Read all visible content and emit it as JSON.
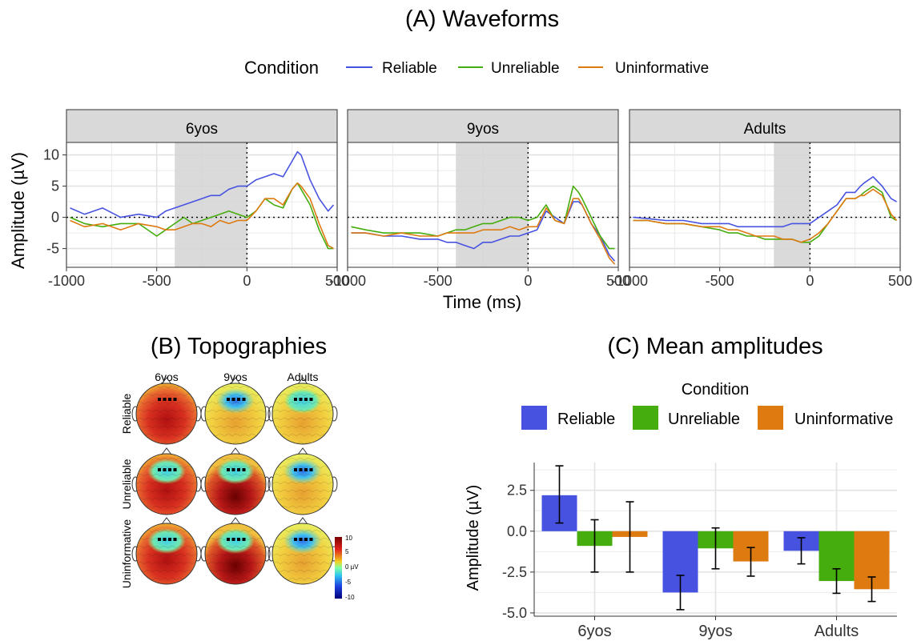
{
  "panel_a": {
    "title": "(A) Waveforms",
    "legend_title": "Condition",
    "ylabel": "Amplitude (µV)",
    "xlabel": "Time (ms)"
  },
  "panel_b": {
    "title": "(B) Topographies",
    "col_labels": [
      "6yos",
      "9yos",
      "Adults"
    ],
    "row_labels": [
      "Reliable",
      "Unreliable",
      "Uninformative"
    ],
    "colorbar_ticks": [
      "10",
      "5",
      "0 µV",
      "-5",
      "-10"
    ]
  },
  "panel_c": {
    "title": "(C) Mean amplitudes",
    "legend_title": "Condition",
    "ylabel": "Amplitude (µV)"
  },
  "colors": {
    "Reliable": "#4753e0",
    "Unreliable": "#46ad0e",
    "Uninformative": "#dd7a10",
    "strip": "#d9d9d9",
    "grid": "#ebebeb",
    "panel_border": "#333333",
    "shade": "#d4d4d4"
  },
  "chart_data": [
    {
      "type": "line",
      "title": "(A) Waveforms",
      "xlabel": "Time (ms)",
      "ylabel": "Amplitude (µV)",
      "xlim": [
        -1000,
        500
      ],
      "ylim": [
        -8,
        12
      ],
      "xticks": [
        "-1000",
        "-500",
        "0",
        "500"
      ],
      "yticks": [
        "-5",
        "0",
        "5",
        "10"
      ],
      "legend": "top",
      "grid": true,
      "facets": [
        {
          "label": "6yos",
          "shade": [
            -400,
            0
          ],
          "series": [
            {
              "name": "Reliable",
              "x": [
                -980,
                -900,
                -800,
                -700,
                -600,
                -500,
                -450,
                -400,
                -350,
                -300,
                -250,
                -200,
                -150,
                -100,
                -50,
                0,
                50,
                100,
                150,
                200,
                250,
                280,
                300,
                350,
                400,
                450,
                480
              ],
              "y": [
                1.5,
                0.5,
                1.5,
                0,
                0.5,
                0,
                1,
                1.5,
                2,
                2.5,
                3,
                3.5,
                3.5,
                4.5,
                5,
                5,
                6,
                6.5,
                7,
                6.5,
                9,
                10.5,
                10,
                6,
                3,
                1,
                2
              ]
            },
            {
              "name": "Unreliable",
              "x": [
                -980,
                -900,
                -800,
                -700,
                -600,
                -500,
                -450,
                -400,
                -350,
                -300,
                -250,
                -200,
                -150,
                -100,
                -50,
                0,
                50,
                100,
                150,
                200,
                250,
                280,
                300,
                350,
                400,
                450,
                480
              ],
              "y": [
                0,
                -1,
                -1.5,
                -1,
                -1,
                -3,
                -2,
                -1,
                0,
                -1,
                -0.5,
                0,
                0.5,
                1,
                0.5,
                0,
                1,
                3,
                2,
                1.5,
                4.5,
                5.5,
                4.5,
                2,
                -2,
                -5,
                -5
              ]
            },
            {
              "name": "Uninformative",
              "x": [
                -980,
                -900,
                -800,
                -700,
                -600,
                -500,
                -450,
                -400,
                -350,
                -300,
                -250,
                -200,
                -150,
                -100,
                -50,
                0,
                50,
                100,
                150,
                200,
                250,
                280,
                300,
                350,
                400,
                450,
                480
              ],
              "y": [
                -0.5,
                -1.5,
                -1,
                -2,
                -1,
                -1.5,
                -2,
                -2,
                -1.5,
                -1,
                -1,
                -1.5,
                -0.5,
                -1,
                -0.5,
                -0.5,
                1,
                3,
                3,
                2,
                4.5,
                5.5,
                5,
                3,
                -1,
                -4.5,
                -5
              ]
            }
          ]
        },
        {
          "label": "9yos",
          "shade": [
            -400,
            0
          ],
          "series": [
            {
              "name": "Reliable",
              "x": [
                -980,
                -900,
                -800,
                -700,
                -600,
                -500,
                -450,
                -400,
                -350,
                -300,
                -250,
                -200,
                -150,
                -100,
                -50,
                0,
                50,
                100,
                150,
                200,
                250,
                280,
                300,
                350,
                400,
                450,
                480
              ],
              "y": [
                -2.5,
                -2.5,
                -3,
                -3,
                -3.5,
                -3.5,
                -4,
                -4,
                -4.5,
                -5,
                -4,
                -4,
                -3.5,
                -3,
                -3,
                -2.5,
                -2,
                1,
                0,
                -1,
                2.5,
                2.5,
                2,
                -1,
                -3,
                -6,
                -7
              ]
            },
            {
              "name": "Unreliable",
              "x": [
                -980,
                -900,
                -800,
                -700,
                -600,
                -500,
                -450,
                -400,
                -350,
                -300,
                -250,
                -200,
                -150,
                -100,
                -50,
                0,
                50,
                100,
                150,
                200,
                250,
                280,
                300,
                350,
                400,
                450,
                480
              ],
              "y": [
                -1.5,
                -2,
                -2.5,
                -2.5,
                -2.5,
                -3,
                -2.5,
                -2,
                -2,
                -1.5,
                -1,
                -1,
                -0.5,
                0,
                0,
                -0.5,
                0,
                2,
                -0.5,
                -1,
                5,
                4,
                3,
                0,
                -3,
                -5,
                -5
              ]
            },
            {
              "name": "Uninformative",
              "x": [
                -980,
                -900,
                -800,
                -700,
                -600,
                -500,
                -450,
                -400,
                -350,
                -300,
                -250,
                -200,
                -150,
                -100,
                -50,
                0,
                50,
                100,
                150,
                200,
                250,
                280,
                300,
                350,
                400,
                450,
                480
              ],
              "y": [
                -2.5,
                -2.5,
                -3,
                -2.5,
                -3,
                -3,
                -2.5,
                -2.5,
                -2.5,
                -2.5,
                -2,
                -2,
                -2,
                -1.5,
                -2,
                -1.5,
                -1.5,
                1.5,
                -0.5,
                -1,
                3,
                3,
                2,
                -1,
                -3.5,
                -6.5,
                -7.5
              ]
            }
          ]
        },
        {
          "label": "Adults",
          "shade": [
            -200,
            0
          ],
          "series": [
            {
              "name": "Reliable",
              "x": [
                -980,
                -900,
                -800,
                -700,
                -600,
                -500,
                -450,
                -400,
                -350,
                -300,
                -250,
                -200,
                -150,
                -100,
                -50,
                0,
                50,
                100,
                150,
                200,
                250,
                280,
                300,
                350,
                400,
                450,
                480
              ],
              "y": [
                0,
                -0.2,
                -0.5,
                -0.5,
                -1,
                -1,
                -1,
                -1.5,
                -1.5,
                -1.5,
                -1.5,
                -1.5,
                -1.5,
                -1,
                -1,
                -1,
                0,
                1,
                2,
                4,
                4,
                5,
                5.5,
                6.5,
                5,
                3,
                2.5
              ]
            },
            {
              "name": "Unreliable",
              "x": [
                -980,
                -900,
                -800,
                -700,
                -600,
                -500,
                -450,
                -400,
                -350,
                -300,
                -250,
                -200,
                -150,
                -100,
                -50,
                0,
                50,
                100,
                150,
                200,
                250,
                280,
                300,
                350,
                400,
                450,
                480
              ],
              "y": [
                -0.5,
                -0.5,
                -1,
                -1,
                -1.5,
                -2,
                -2.5,
                -2.5,
                -3,
                -3,
                -3.5,
                -3.5,
                -3.5,
                -3.5,
                -4,
                -4,
                -3,
                -1,
                1,
                3,
                3,
                3.5,
                4,
                5,
                4,
                0,
                -0.5
              ]
            },
            {
              "name": "Uninformative",
              "x": [
                -980,
                -900,
                -800,
                -700,
                -600,
                -500,
                -450,
                -400,
                -350,
                -300,
                -250,
                -200,
                -150,
                -100,
                -50,
                0,
                50,
                100,
                150,
                200,
                250,
                280,
                300,
                350,
                400,
                450,
                480
              ],
              "y": [
                -0.5,
                -0.5,
                -1,
                -1,
                -1.5,
                -1.5,
                -2,
                -2,
                -2.5,
                -3,
                -3,
                -3,
                -3.5,
                -3.5,
                -4,
                -3.5,
                -2.5,
                -1,
                1,
                3,
                3,
                3.5,
                3.5,
                4.5,
                3.5,
                0.5,
                -0.5
              ]
            }
          ]
        }
      ]
    },
    {
      "type": "bar",
      "title": "(C) Mean amplitudes",
      "ylabel": "Amplitude (µV)",
      "categories": [
        "6yos",
        "9yos",
        "Adults"
      ],
      "ylim": [
        -5.2,
        4.2
      ],
      "yticks": [
        "2.5",
        "0.0",
        "-2.5",
        "-5.0"
      ],
      "legend": "top",
      "legend_title": "Condition",
      "grid": true,
      "series": [
        {
          "name": "Reliable",
          "values": [
            2.2,
            -3.75,
            -1.2
          ],
          "err_low": [
            0.5,
            -4.8,
            -2.0
          ],
          "err_high": [
            4.0,
            -2.7,
            -0.4
          ]
        },
        {
          "name": "Unreliable",
          "values": [
            -0.9,
            -1.05,
            -3.05
          ],
          "err_low": [
            -2.5,
            -2.3,
            -3.8
          ],
          "err_high": [
            0.7,
            0.2,
            -2.3
          ]
        },
        {
          "name": "Uninformative",
          "values": [
            -0.35,
            -1.85,
            -3.55
          ],
          "err_low": [
            -2.5,
            -2.75,
            -4.3
          ],
          "err_high": [
            1.8,
            -1.0,
            -2.8
          ]
        }
      ]
    }
  ]
}
